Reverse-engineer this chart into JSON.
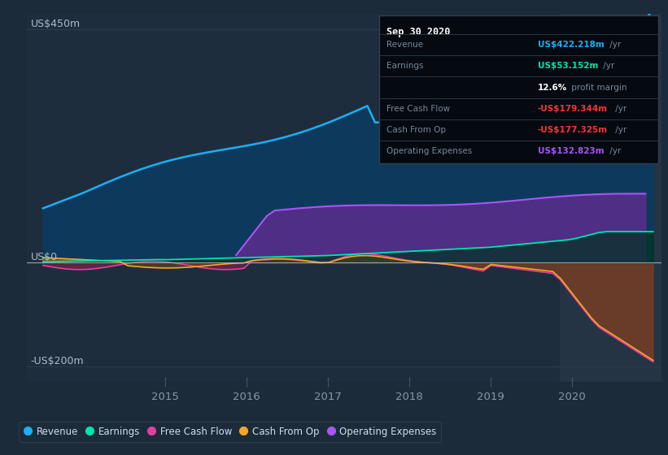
{
  "bg_color": "#1c2b3a",
  "plot_bg_color": "#1e2d3d",
  "highlight_bg": "#253445",
  "ylabel_top": "US$450m",
  "ylabel_mid": "US$0",
  "ylabel_bot": "-US$200m",
  "xticklabels": [
    "2015",
    "2016",
    "2017",
    "2018",
    "2019",
    "2020"
  ],
  "xticks": [
    2015,
    2016,
    2017,
    2018,
    2019,
    2020
  ],
  "legend_items": [
    {
      "label": "Revenue",
      "color": "#1ab0f5"
    },
    {
      "label": "Earnings",
      "color": "#00e5b0"
    },
    {
      "label": "Free Cash Flow",
      "color": "#e040a0"
    },
    {
      "label": "Cash From Op",
      "color": "#f5a623"
    },
    {
      "label": "Operating Expenses",
      "color": "#a855f7"
    }
  ],
  "info_box_title": "Sep 30 2020",
  "info_rows": [
    {
      "label": "Revenue",
      "value": "US$422.218m",
      "vcolor": "#1ab0f5",
      "suffix": " /yr"
    },
    {
      "label": "Earnings",
      "value": "US$53.152m",
      "vcolor": "#00e5b0",
      "suffix": " /yr"
    },
    {
      "label": "",
      "value": "12.6%",
      "vcolor": "#ffffff",
      "suffix": " profit margin"
    },
    {
      "label": "Free Cash Flow",
      "value": "-US$179.344m",
      "vcolor": "#ff3333",
      "suffix": " /yr"
    },
    {
      "label": "Cash From Op",
      "value": "-US$177.325m",
      "vcolor": "#ff3333",
      "suffix": " /yr"
    },
    {
      "label": "Operating Expenses",
      "value": "US$132.823m",
      "vcolor": "#a855f7",
      "suffix": " /yr"
    }
  ],
  "xlim": [
    2013.3,
    2021.1
  ],
  "ylim": [
    -230,
    480
  ],
  "y_zero": 0,
  "y_top": 450,
  "y_bot": -200,
  "highlight_x_start": 2019.85,
  "n_points": 80
}
